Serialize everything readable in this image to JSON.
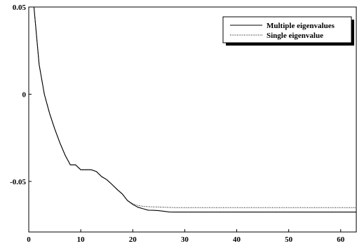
{
  "chart_data": {
    "type": "line",
    "title": "",
    "xlabel": "",
    "ylabel": "",
    "xlim": [
      0,
      63
    ],
    "ylim": [
      -0.079,
      0.05
    ],
    "x_ticks": [
      0,
      10,
      20,
      30,
      40,
      50,
      60
    ],
    "x_tick_labels": [
      "0",
      "10",
      "20",
      "30",
      "40",
      "50",
      "60"
    ],
    "y_ticks": [
      0.05,
      0,
      -0.05
    ],
    "y_tick_labels": [
      "0.05",
      "0",
      "-0.05"
    ],
    "grid": false,
    "legend_position": "top-right",
    "series": [
      {
        "name": "Multiple eigenvalues",
        "style": "solid",
        "color": "#000000",
        "x": [
          1,
          2,
          3,
          4,
          5,
          6,
          7,
          8,
          9,
          10,
          11,
          12,
          13,
          14,
          15,
          16,
          17,
          18,
          19,
          20,
          21,
          22,
          23,
          24,
          25,
          26,
          27,
          28,
          30,
          35,
          40,
          45,
          50,
          55,
          60,
          63
        ],
        "y": [
          0.05,
          0.017,
          0.0,
          -0.011,
          -0.02,
          -0.028,
          -0.035,
          -0.0405,
          -0.0405,
          -0.0433,
          -0.0433,
          -0.0433,
          -0.0443,
          -0.0472,
          -0.049,
          -0.0517,
          -0.0546,
          -0.0572,
          -0.061,
          -0.0632,
          -0.0648,
          -0.0657,
          -0.0665,
          -0.0666,
          -0.0668,
          -0.0671,
          -0.0675,
          -0.0676,
          -0.0676,
          -0.0676,
          -0.0676,
          -0.0676,
          -0.0676,
          -0.0676,
          -0.0676,
          -0.0676
        ]
      },
      {
        "name": "Single eigenvalue",
        "style": "dotted",
        "color": "#000000",
        "x": [
          1,
          2,
          3,
          4,
          5,
          6,
          7,
          8,
          9,
          10,
          11,
          12,
          13,
          14,
          15,
          16,
          17,
          18,
          19,
          20,
          21,
          22,
          23,
          24,
          25,
          26,
          27,
          28,
          30,
          35,
          40,
          45,
          50,
          55,
          60,
          63
        ],
        "y": [
          0.05,
          0.017,
          0.0,
          -0.011,
          -0.02,
          -0.028,
          -0.035,
          -0.0405,
          -0.0405,
          -0.0433,
          -0.0433,
          -0.0433,
          -0.0443,
          -0.0472,
          -0.049,
          -0.0517,
          -0.0546,
          -0.0572,
          -0.061,
          -0.0628,
          -0.0638,
          -0.0643,
          -0.0645,
          -0.0646,
          -0.0647,
          -0.0648,
          -0.0649,
          -0.065,
          -0.065,
          -0.065,
          -0.065,
          -0.065,
          -0.065,
          -0.065,
          -0.065,
          -0.065
        ]
      }
    ]
  }
}
